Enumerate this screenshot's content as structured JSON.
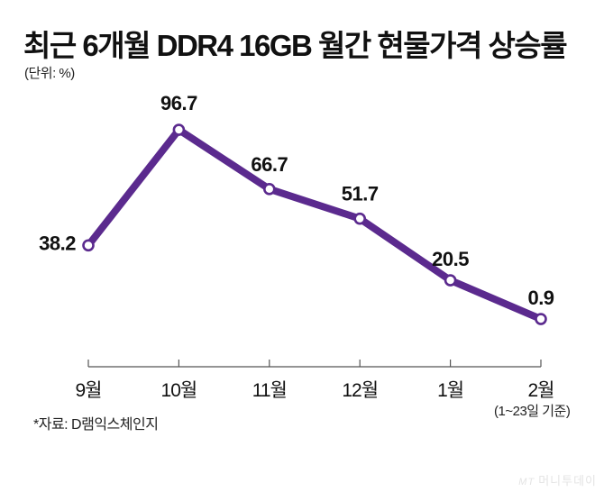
{
  "chart_data": {
    "type": "line",
    "title": "최근 6개월 DDR4 16GB 월간 현물가격 상승률",
    "unit_label": "(단위: %)",
    "categories": [
      "9월",
      "10월",
      "11월",
      "12월",
      "1월",
      "2월"
    ],
    "series": [
      {
        "name": "상승률",
        "values": [
          38.2,
          96.7,
          66.7,
          51.7,
          20.5,
          0.9
        ]
      }
    ],
    "data_labels": [
      "38.2",
      "96.7",
      "66.7",
      "51.7",
      "20.5",
      "0.9"
    ],
    "xlabel": "",
    "ylabel": "",
    "ylim": [
      0,
      100
    ],
    "grid": false,
    "legend": "none",
    "annotation": "(1~23일 기준)",
    "source": "*자료: D램익스체인지",
    "line_color": "#5b2a8e"
  },
  "branding": {
    "logo_mt": "MT",
    "logo_text": "머니투데이"
  }
}
